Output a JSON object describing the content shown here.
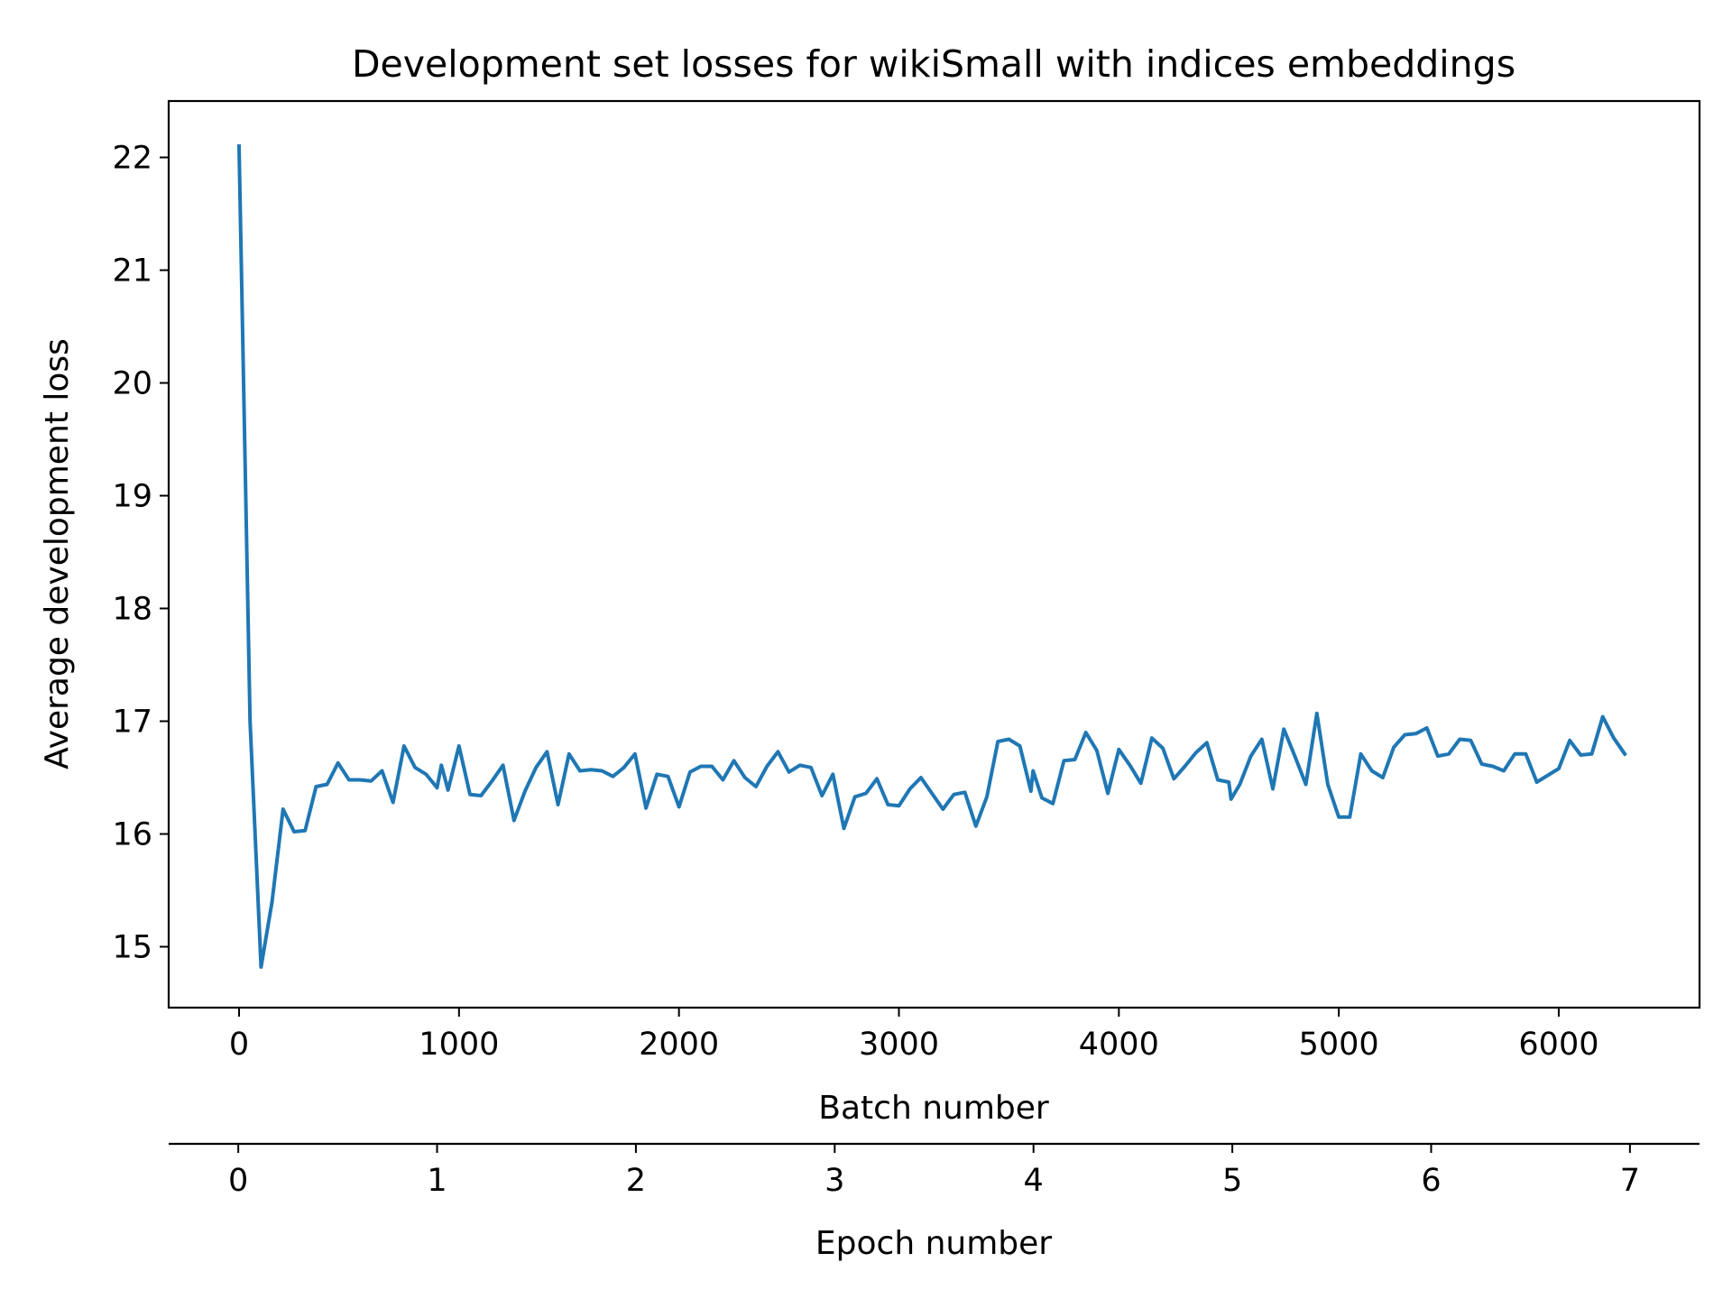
{
  "chart_data": {
    "type": "line",
    "title": "Development set losses for wikiSmall with indices embeddings",
    "xlabel": "Batch number",
    "ylabel": "Average development loss",
    "secondary_xlabel": "Epoch number",
    "xlim": [
      -320,
      6640
    ],
    "ylim": [
      14.46,
      22.5
    ],
    "xticks": [
      0,
      1000,
      2000,
      3000,
      4000,
      5000,
      6000
    ],
    "yticks": [
      15,
      16,
      17,
      18,
      19,
      20,
      21,
      22
    ],
    "secondary_xticks": [
      0,
      1,
      2,
      3,
      4,
      5,
      6,
      7
    ],
    "secondary_xlim": [
      -0.35,
      7.35
    ],
    "grid": false,
    "line_color": "#1f77b4",
    "series": [
      {
        "x": [
          0,
          50,
          100,
          150,
          200,
          250,
          300,
          350,
          400,
          450,
          500,
          550,
          600,
          650,
          700,
          750,
          800,
          850,
          900,
          920,
          950,
          1000,
          1050,
          1100,
          1150,
          1200,
          1250,
          1300,
          1350,
          1400,
          1450,
          1500,
          1550,
          1600,
          1650,
          1700,
          1750,
          1800,
          1850,
          1900,
          1950,
          2000,
          2050,
          2100,
          2150,
          2200,
          2250,
          2300,
          2350,
          2400,
          2450,
          2500,
          2550,
          2600,
          2650,
          2700,
          2750,
          2800,
          2850,
          2900,
          2950,
          3000,
          3050,
          3100,
          3150,
          3200,
          3250,
          3300,
          3350,
          3400,
          3450,
          3500,
          3550,
          3600,
          3610,
          3650,
          3700,
          3750,
          3800,
          3850,
          3900,
          3950,
          4000,
          4050,
          4100,
          4150,
          4200,
          4250,
          4300,
          4350,
          4400,
          4450,
          4500,
          4510,
          4550,
          4600,
          4650,
          4700,
          4750,
          4800,
          4850,
          4900,
          4950,
          5000,
          5050,
          5100,
          5150,
          5200,
          5250,
          5300,
          5350,
          5400,
          5450,
          5500,
          5550,
          5600,
          5650,
          5700,
          5750,
          5800,
          5850,
          5900,
          5950,
          6000,
          6050,
          6100,
          6150,
          6200,
          6250,
          6300
        ],
        "y": [
          22.1,
          17.0,
          14.82,
          15.4,
          16.22,
          16.02,
          16.03,
          16.42,
          16.44,
          16.63,
          16.48,
          16.48,
          16.47,
          16.56,
          16.28,
          16.78,
          16.59,
          16.53,
          16.41,
          16.61,
          16.39,
          16.78,
          16.35,
          16.34,
          16.47,
          16.61,
          16.12,
          16.38,
          16.59,
          16.73,
          16.26,
          16.71,
          16.56,
          16.57,
          16.56,
          16.51,
          16.59,
          16.71,
          16.23,
          16.53,
          16.51,
          16.24,
          16.55,
          16.6,
          16.6,
          16.48,
          16.65,
          16.5,
          16.42,
          16.6,
          16.73,
          16.55,
          16.61,
          16.59,
          16.34,
          16.53,
          16.05,
          16.33,
          16.36,
          16.49,
          16.26,
          16.25,
          16.4,
          16.5,
          16.36,
          16.22,
          16.35,
          16.37,
          16.07,
          16.33,
          16.82,
          16.84,
          16.78,
          16.38,
          16.56,
          16.32,
          16.27,
          16.65,
          16.66,
          16.9,
          16.74,
          16.36,
          16.75,
          16.61,
          16.45,
          16.85,
          16.76,
          16.49,
          16.6,
          16.72,
          16.81,
          16.48,
          16.46,
          16.31,
          16.44,
          16.69,
          16.84,
          16.4,
          16.93,
          16.69,
          16.44,
          17.07,
          16.44,
          16.15,
          16.15,
          16.71,
          16.56,
          16.5,
          16.77,
          16.88,
          16.89,
          16.94,
          16.69,
          16.71,
          16.84,
          16.83,
          16.62,
          16.6,
          16.56,
          16.71,
          16.71,
          16.46,
          16.52,
          16.58,
          16.83,
          16.7,
          16.71,
          17.04,
          16.85,
          16.71
        ]
      }
    ]
  }
}
